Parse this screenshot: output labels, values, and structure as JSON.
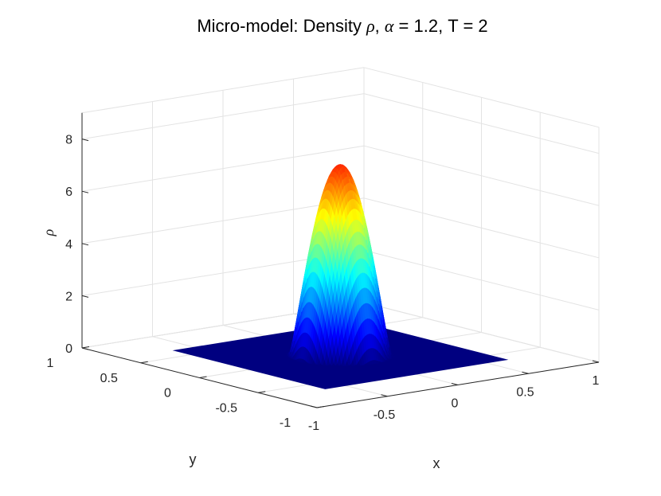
{
  "chart_data": {
    "type": "surface",
    "title": {
      "prefix": "Micro-model: Density ",
      "rho": "ρ",
      "mid": ", ",
      "alpha": "α",
      "suffix": " = 1.2, T = 2"
    },
    "xlabel": "x",
    "ylabel": "y",
    "zlabel": "ρ",
    "xlim": [
      -1,
      1
    ],
    "ylim": [
      -1,
      1
    ],
    "zlim": [
      0,
      9
    ],
    "xticks": [
      "-1",
      "-0.5",
      "0",
      "0.5",
      "1"
    ],
    "yticks": [
      "-1",
      "-0.5",
      "0",
      "0.5",
      "1"
    ],
    "zticks": [
      "0",
      "2",
      "4",
      "6",
      "8"
    ],
    "x_tick_values": [
      -1,
      -0.5,
      0,
      0.5,
      1
    ],
    "y_tick_values": [
      -1,
      -0.5,
      0,
      0.5,
      1
    ],
    "z_tick_values": [
      0,
      2,
      4,
      6,
      8
    ],
    "grid": true,
    "colormap": "jet",
    "surface": {
      "peak_x": 0,
      "peak_y": 0,
      "peak_value": 7.3,
      "support_radius": 0.28,
      "domain_x": [
        -0.65,
        0.65
      ],
      "domain_y": [
        -0.65,
        0.65
      ],
      "base_value": 0
    }
  }
}
